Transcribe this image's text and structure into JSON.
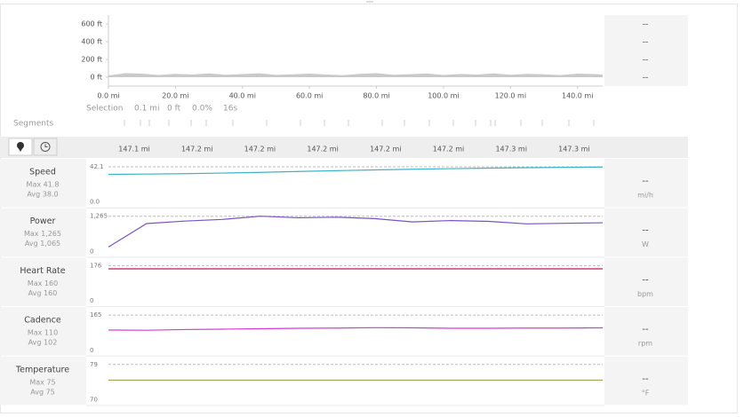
{
  "elevation": {
    "type": "area",
    "color": "#c9c9c9",
    "x": [
      0,
      5,
      10,
      15,
      20,
      25,
      30,
      35,
      40,
      45,
      50,
      55,
      60,
      65,
      70,
      75,
      80,
      85,
      90,
      95,
      100,
      105,
      110,
      115,
      120,
      125,
      130,
      135,
      140,
      145,
      147.5
    ],
    "values": [
      20,
      45,
      40,
      25,
      38,
      30,
      42,
      28,
      35,
      44,
      26,
      33,
      40,
      30,
      22,
      38,
      45,
      28,
      34,
      41,
      25,
      36,
      30,
      43,
      27,
      38,
      32,
      24,
      40,
      35,
      30
    ],
    "xlim": [
      0,
      147.5
    ],
    "ylim": [
      -100,
      700
    ],
    "xticks": [
      {
        "value": 0,
        "label": "0.0 mi"
      },
      {
        "value": 20,
        "label": "20.0 mi"
      },
      {
        "value": 40,
        "label": "40.0 mi"
      },
      {
        "value": 60,
        "label": "60.0 mi"
      },
      {
        "value": 80,
        "label": "80.0 mi"
      },
      {
        "value": 100,
        "label": "100.0 mi"
      },
      {
        "value": 120,
        "label": "120.0 mi"
      },
      {
        "value": 140,
        "label": "140.0 mi"
      }
    ],
    "yticks": [
      {
        "value": 0,
        "label": "0 ft"
      },
      {
        "value": 200,
        "label": "200 ft"
      },
      {
        "value": 400,
        "label": "400 ft"
      },
      {
        "value": 600,
        "label": "600 ft"
      }
    ]
  },
  "summary": [
    "--",
    "--",
    "--",
    "--"
  ],
  "selection": {
    "label": "Selection",
    "distance": "0.1 mi",
    "elevation": "0 ft",
    "grade": "0.0%",
    "time": "16s"
  },
  "segments_label": "Segments",
  "detail_x_labels": [
    "147.1 mi",
    "147.2 mi",
    "147.2 mi",
    "147.2 mi",
    "147.2 mi",
    "147.2 mi",
    "147.3 mi",
    "147.3 mi"
  ],
  "panels": [
    {
      "title": "Speed",
      "max": "Max 41.8",
      "avg": "Avg 38.0",
      "type": "line",
      "color": "#3fb3c8",
      "values": [
        33.0,
        33.4,
        33.9,
        34.6,
        35.5,
        36.5,
        37.5,
        38.4,
        39.2,
        39.9,
        40.5,
        41.0,
        41.4,
        41.8
      ],
      "ylim": [
        0,
        42.1
      ],
      "yticks": [
        {
          "value": 0,
          "label": "0.0"
        },
        42.1
      ],
      "current": "--",
      "unit": "mi/h"
    },
    {
      "title": "Power",
      "max": "Max 1,265",
      "avg": "Avg 1,065",
      "type": "line",
      "color": "#7b4fc9",
      "values": [
        160,
        1000,
        1090,
        1150,
        1265,
        1210,
        1230,
        1180,
        1060,
        1110,
        1080,
        990,
        1010,
        1030
      ],
      "ylim": [
        0,
        1265
      ],
      "yticks": [
        0,
        {
          "value": 1265,
          "label": "1,265"
        }
      ],
      "current": "--",
      "unit": "W"
    },
    {
      "title": "Heart Rate",
      "max": "Max 160",
      "avg": "Avg 160",
      "type": "line",
      "color": "#c2185b",
      "values": [
        160,
        160,
        160,
        160,
        160,
        160,
        160,
        160,
        160,
        160,
        160,
        160,
        160,
        160
      ],
      "ylim": [
        0,
        176
      ],
      "yticks": [
        0,
        176
      ],
      "current": "--",
      "unit": "bpm"
    },
    {
      "title": "Cadence",
      "max": "Max 110",
      "avg": "Avg 102",
      "type": "line",
      "color": "#d63bd6",
      "values": [
        95,
        94,
        97,
        99,
        101,
        103,
        104,
        106,
        105,
        103,
        103,
        104,
        104,
        105
      ],
      "ylim": [
        0,
        165
      ],
      "yticks": [
        0,
        165
      ],
      "current": "--",
      "unit": "rpm"
    },
    {
      "title": "Temperature",
      "max": "Max 75",
      "avg": "Avg 75",
      "type": "line",
      "color": "#9aa85a",
      "values": [
        75,
        75,
        75,
        75,
        75,
        75,
        75,
        75,
        75,
        75,
        75,
        75,
        75,
        75
      ],
      "ylim": [
        70,
        79
      ],
      "yticks": [
        70,
        79
      ],
      "current": "--",
      "unit": "°F"
    }
  ]
}
